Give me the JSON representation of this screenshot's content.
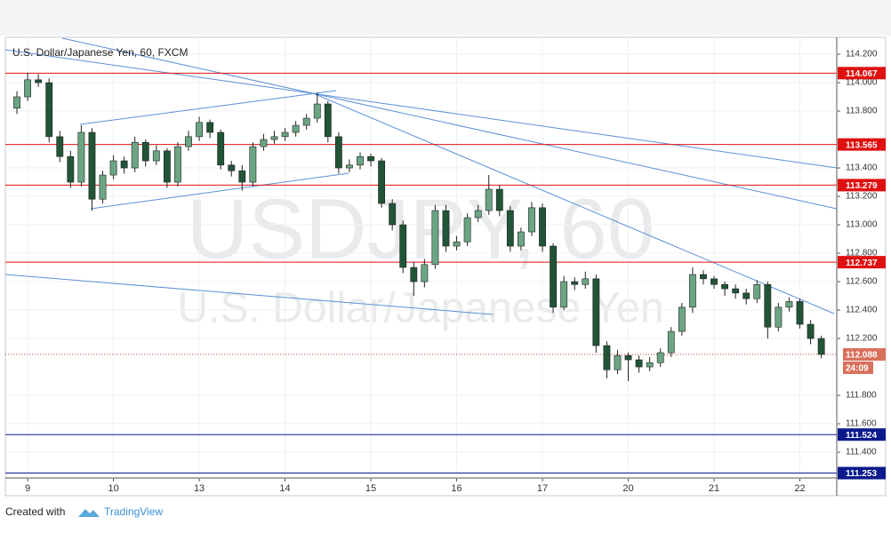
{
  "chart_data": {
    "type": "candlestick",
    "title": "U.S. Dollar/Japanese Yen, 60, FXCM",
    "watermark": "USDJPY, 60",
    "watermark_subtitle": "U.S. Dollar/Japanese Yen",
    "up_color": "#6ba583",
    "down_color": "#225437",
    "xlim": [
      -0.26,
      9.43
    ],
    "xticks": [
      {
        "value": 0,
        "label": "9"
      },
      {
        "value": 1,
        "label": "10"
      },
      {
        "value": 2,
        "label": "13"
      },
      {
        "value": 3,
        "label": "14"
      },
      {
        "value": 4,
        "label": "15"
      },
      {
        "value": 5,
        "label": "16"
      },
      {
        "value": 6,
        "label": "17"
      },
      {
        "value": 7,
        "label": "20"
      },
      {
        "value": 8,
        "label": "21"
      },
      {
        "value": 9,
        "label": "22"
      }
    ],
    "ylim": [
      111.219,
      114.319
    ],
    "yticks": [
      {
        "value": 114.2,
        "label": "114.200"
      },
      {
        "value": 114.0,
        "label": "114.000"
      },
      {
        "value": 113.8,
        "label": "113.800"
      },
      {
        "value": 113.4,
        "label": "113.400"
      },
      {
        "value": 113.2,
        "label": "113.200"
      },
      {
        "value": 113.0,
        "label": "113.000"
      },
      {
        "value": 112.8,
        "label": "112.800"
      },
      {
        "value": 112.6,
        "label": "112.600"
      },
      {
        "value": 112.4,
        "label": "112.400"
      },
      {
        "value": 112.2,
        "label": "112.200"
      },
      {
        "value": 111.8,
        "label": "111.800"
      },
      {
        "value": 111.6,
        "label": "111.600"
      },
      {
        "value": 111.4,
        "label": "111.400"
      }
    ],
    "x": [
      -0.125,
      0,
      0.125,
      0.25,
      0.375,
      0.5,
      0.625,
      0.75,
      0.875,
      1,
      1.125,
      1.25,
      1.375,
      1.5,
      1.625,
      1.75,
      1.875,
      2,
      2.125,
      2.25,
      2.375,
      2.5,
      2.625,
      2.75,
      2.875,
      3,
      3.125,
      3.25,
      3.375,
      3.5,
      3.625,
      3.75,
      3.875,
      4,
      4.125,
      4.25,
      4.375,
      4.5,
      4.625,
      4.75,
      4.875,
      5,
      5.125,
      5.25,
      5.375,
      5.5,
      5.625,
      5.75,
      5.875,
      6,
      6.125,
      6.25,
      6.375,
      6.5,
      6.625,
      6.75,
      6.875,
      7,
      7.125,
      7.25,
      7.375,
      7.5,
      7.625,
      7.75,
      7.875,
      8,
      8.125,
      8.25,
      8.375,
      8.5,
      8.625,
      8.75,
      8.875,
      9,
      9.125,
      9.25
    ],
    "open": [
      113.82,
      113.9,
      114.02,
      114.0,
      113.62,
      113.48,
      113.3,
      113.65,
      113.18,
      113.35,
      113.45,
      113.4,
      113.58,
      113.45,
      113.52,
      113.3,
      113.55,
      113.62,
      113.72,
      113.65,
      113.42,
      113.38,
      113.3,
      113.55,
      113.6,
      113.62,
      113.65,
      113.7,
      113.75,
      113.85,
      113.62,
      113.4,
      113.42,
      113.48,
      113.45,
      113.15,
      113.0,
      112.7,
      112.6,
      112.72,
      113.1,
      112.85,
      112.88,
      113.05,
      113.1,
      113.25,
      113.1,
      112.85,
      112.95,
      113.12,
      112.85,
      112.42,
      112.6,
      112.58,
      112.62,
      112.15,
      111.98,
      112.08,
      112.05,
      112.0,
      112.03,
      112.1,
      112.25,
      112.42,
      112.65,
      112.62,
      112.58,
      112.55,
      112.52,
      112.48,
      112.58,
      112.28,
      112.42,
      112.46,
      112.3,
      112.2
    ],
    "high": [
      113.94,
      114.07,
      114.06,
      114.03,
      113.66,
      113.52,
      113.7,
      113.68,
      113.38,
      113.49,
      113.48,
      113.62,
      113.6,
      113.56,
      113.54,
      113.58,
      113.66,
      113.76,
      113.74,
      113.67,
      113.45,
      113.42,
      113.58,
      113.64,
      113.66,
      113.68,
      113.73,
      113.78,
      113.93,
      113.87,
      113.65,
      113.46,
      113.51,
      113.5,
      113.47,
      113.18,
      113.03,
      112.74,
      112.76,
      113.14,
      113.14,
      112.92,
      113.08,
      113.14,
      113.35,
      113.28,
      113.13,
      112.98,
      113.16,
      113.15,
      112.87,
      112.64,
      112.63,
      112.67,
      112.65,
      112.18,
      112.12,
      112.1,
      112.08,
      112.07,
      112.13,
      112.28,
      112.45,
      112.7,
      112.68,
      112.64,
      112.6,
      112.58,
      112.55,
      112.61,
      112.6,
      112.45,
      112.49,
      112.48,
      112.33,
      112.22
    ],
    "low": [
      113.78,
      113.87,
      113.97,
      113.58,
      113.44,
      113.26,
      113.27,
      113.1,
      113.15,
      113.32,
      113.36,
      113.37,
      113.41,
      113.42,
      113.26,
      113.27,
      113.52,
      113.59,
      113.61,
      113.39,
      113.34,
      113.24,
      113.27,
      113.52,
      113.57,
      113.59,
      113.62,
      113.67,
      113.72,
      113.58,
      113.36,
      113.37,
      113.39,
      113.41,
      113.12,
      112.96,
      112.66,
      112.5,
      112.56,
      112.69,
      112.81,
      112.82,
      112.85,
      113.02,
      113.07,
      113.06,
      112.81,
      112.82,
      112.92,
      112.81,
      112.38,
      112.4,
      112.54,
      112.55,
      112.1,
      111.92,
      111.95,
      111.9,
      111.96,
      111.97,
      112.0,
      112.07,
      112.22,
      112.38,
      112.58,
      112.55,
      112.5,
      112.48,
      112.44,
      112.45,
      112.2,
      112.25,
      112.39,
      112.27,
      112.16,
      112.06
    ],
    "close": [
      113.9,
      114.02,
      114.0,
      113.62,
      113.48,
      113.3,
      113.65,
      113.18,
      113.35,
      113.45,
      113.4,
      113.58,
      113.45,
      113.52,
      113.3,
      113.55,
      113.62,
      113.72,
      113.65,
      113.42,
      113.38,
      113.3,
      113.55,
      113.6,
      113.62,
      113.65,
      113.7,
      113.75,
      113.85,
      113.62,
      113.4,
      113.42,
      113.48,
      113.45,
      113.15,
      113.0,
      112.7,
      112.6,
      112.72,
      113.1,
      112.85,
      112.88,
      113.05,
      113.1,
      113.25,
      113.1,
      112.85,
      112.95,
      113.12,
      112.85,
      112.42,
      112.6,
      112.58,
      112.62,
      112.15,
      111.98,
      112.08,
      112.05,
      112.0,
      112.03,
      112.1,
      112.25,
      112.42,
      112.65,
      112.62,
      112.58,
      112.55,
      112.52,
      112.48,
      112.58,
      112.28,
      112.42,
      112.46,
      112.3,
      112.2,
      112.088
    ],
    "levels": [
      {
        "value": 114.067,
        "color": "#e01010"
      },
      {
        "value": 113.565,
        "color": "#e01010"
      },
      {
        "value": 113.279,
        "color": "#e01010"
      },
      {
        "value": 112.737,
        "color": "#e01010"
      },
      {
        "value": 111.524,
        "color": "#0b1a8c"
      },
      {
        "value": 111.253,
        "color": "#0b1a8c"
      }
    ],
    "last_price": 112.088,
    "countdown": "24:09",
    "footer": {
      "prefix": "Created with",
      "brand": "TradingView"
    }
  }
}
